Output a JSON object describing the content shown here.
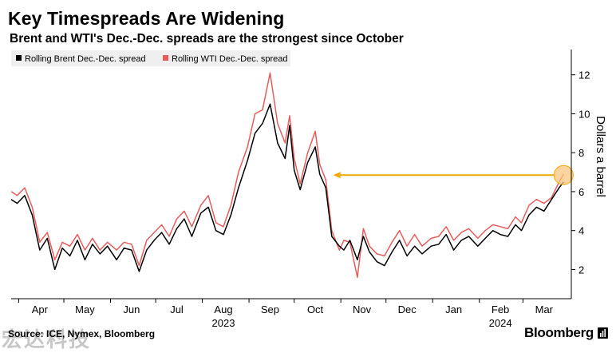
{
  "header": {
    "title": "Key Timespreads Are Widening",
    "subtitle": "Brent and WTI's Dec.-Dec. spreads are the strongest since October"
  },
  "footer": {
    "source": "Source: ICE, Nymex, Bloomberg",
    "brand": "Bloomberg",
    "watermark": "宏达科技"
  },
  "colors": {
    "brent": "#000000",
    "wti": "#e85c5c",
    "annotation": "#f2a900",
    "highlight_fill": "#f9c680",
    "legend_bg": "#efefef",
    "axis": "#000000"
  },
  "chart_data": {
    "type": "line",
    "xlabel_years": [
      {
        "label": "2023",
        "date": "2023-08-15"
      },
      {
        "label": "2024",
        "date": "2024-02-15"
      }
    ],
    "ylabel": "Dollars a barrel",
    "ylim": [
      0.5,
      13.3
    ],
    "yticks": [
      2,
      4,
      6,
      8,
      10,
      12
    ],
    "y_axis_side": "right",
    "grid": false,
    "legend_position": "top-left",
    "x_range": [
      "2023-03-27",
      "2024-03-31"
    ],
    "month_ticks": [
      {
        "label": "Apr",
        "date": "2023-04-15"
      },
      {
        "label": "May",
        "date": "2023-05-15"
      },
      {
        "label": "Jun",
        "date": "2023-06-15"
      },
      {
        "label": "Jul",
        "date": "2023-07-15"
      },
      {
        "label": "Aug",
        "date": "2023-08-15"
      },
      {
        "label": "Sep",
        "date": "2023-09-15"
      },
      {
        "label": "Oct",
        "date": "2023-10-15"
      },
      {
        "label": "Nov",
        "date": "2023-11-15"
      },
      {
        "label": "Dec",
        "date": "2023-12-15"
      },
      {
        "label": "Jan",
        "date": "2024-01-15"
      },
      {
        "label": "Feb",
        "date": "2024-02-15"
      },
      {
        "label": "Mar",
        "date": "2024-03-15"
      }
    ],
    "x": [
      "2023-03-27",
      "2023-03-31",
      "2023-04-05",
      "2023-04-10",
      "2023-04-15",
      "2023-04-20",
      "2023-04-25",
      "2023-04-30",
      "2023-05-05",
      "2023-05-10",
      "2023-05-15",
      "2023-05-20",
      "2023-05-25",
      "2023-05-30",
      "2023-06-05",
      "2023-06-10",
      "2023-06-15",
      "2023-06-20",
      "2023-06-25",
      "2023-06-30",
      "2023-07-05",
      "2023-07-10",
      "2023-07-15",
      "2023-07-20",
      "2023-07-25",
      "2023-07-31",
      "2023-08-05",
      "2023-08-10",
      "2023-08-15",
      "2023-08-20",
      "2023-08-25",
      "2023-08-31",
      "2023-09-05",
      "2023-09-10",
      "2023-09-15",
      "2023-09-20",
      "2023-09-25",
      "2023-09-28",
      "2023-10-01",
      "2023-10-05",
      "2023-10-10",
      "2023-10-15",
      "2023-10-18",
      "2023-10-22",
      "2023-10-26",
      "2023-10-31",
      "2023-11-03",
      "2023-11-07",
      "2023-11-12",
      "2023-11-16",
      "2023-11-20",
      "2023-11-25",
      "2023-11-30",
      "2023-12-05",
      "2023-12-10",
      "2023-12-15",
      "2023-12-20",
      "2023-12-25",
      "2023-12-31",
      "2024-01-05",
      "2024-01-10",
      "2024-01-15",
      "2024-01-20",
      "2024-01-25",
      "2024-01-31",
      "2024-02-05",
      "2024-02-10",
      "2024-02-15",
      "2024-02-20",
      "2024-02-25",
      "2024-02-29",
      "2024-03-05",
      "2024-03-10",
      "2024-03-15",
      "2024-03-20",
      "2024-03-25",
      "2024-03-28"
    ],
    "series": [
      {
        "name": "Rolling Brent Dec.-Dec. spread",
        "values": [
          5.6,
          5.4,
          5.8,
          4.8,
          3.0,
          3.6,
          2.0,
          3.1,
          2.7,
          3.5,
          2.5,
          3.3,
          2.8,
          3.2,
          2.5,
          3.1,
          3.0,
          1.9,
          3.0,
          3.5,
          3.9,
          3.3,
          4.1,
          4.6,
          3.7,
          4.9,
          5.2,
          4.0,
          3.8,
          4.8,
          6.2,
          7.6,
          9.0,
          9.5,
          10.5,
          8.5,
          7.7,
          9.4,
          7.1,
          6.1,
          7.5,
          8.3,
          6.9,
          6.2,
          3.7,
          3.2,
          3.0,
          3.5,
          2.5,
          3.7,
          2.9,
          2.4,
          2.2,
          2.9,
          3.5,
          2.7,
          3.2,
          2.8,
          3.2,
          3.3,
          3.8,
          3.0,
          3.5,
          3.7,
          3.2,
          3.6,
          4.0,
          3.8,
          3.7,
          4.3,
          4.0,
          4.8,
          5.2,
          5.0,
          5.6,
          6.2,
          6.5
        ]
      },
      {
        "name": "Rolling WTI Dec.-Dec. spread",
        "values": [
          6.0,
          5.8,
          6.2,
          5.2,
          3.4,
          3.9,
          2.5,
          3.4,
          3.2,
          3.8,
          3.0,
          3.6,
          3.0,
          3.4,
          3.0,
          3.4,
          3.3,
          2.2,
          3.5,
          3.9,
          4.3,
          3.7,
          4.6,
          5.0,
          4.2,
          5.3,
          5.8,
          4.4,
          4.2,
          5.3,
          7.0,
          8.3,
          10.0,
          10.2,
          12.1,
          9.5,
          8.5,
          9.9,
          7.7,
          6.4,
          8.0,
          9.1,
          7.4,
          6.6,
          4.0,
          3.0,
          3.5,
          3.4,
          1.6,
          4.1,
          3.2,
          2.8,
          2.7,
          3.4,
          4.0,
          3.2,
          3.8,
          3.2,
          3.6,
          3.7,
          4.2,
          3.5,
          3.9,
          4.1,
          3.6,
          4.0,
          4.3,
          4.2,
          4.1,
          4.7,
          4.4,
          5.3,
          5.6,
          5.4,
          5.7,
          6.5,
          6.9
        ]
      }
    ],
    "annotation": {
      "type": "arrow",
      "from_date": "2024-03-28",
      "to_date": "2023-10-27",
      "y_value": 6.85,
      "highlight_date": "2024-03-28",
      "highlight_value": 6.85
    }
  }
}
